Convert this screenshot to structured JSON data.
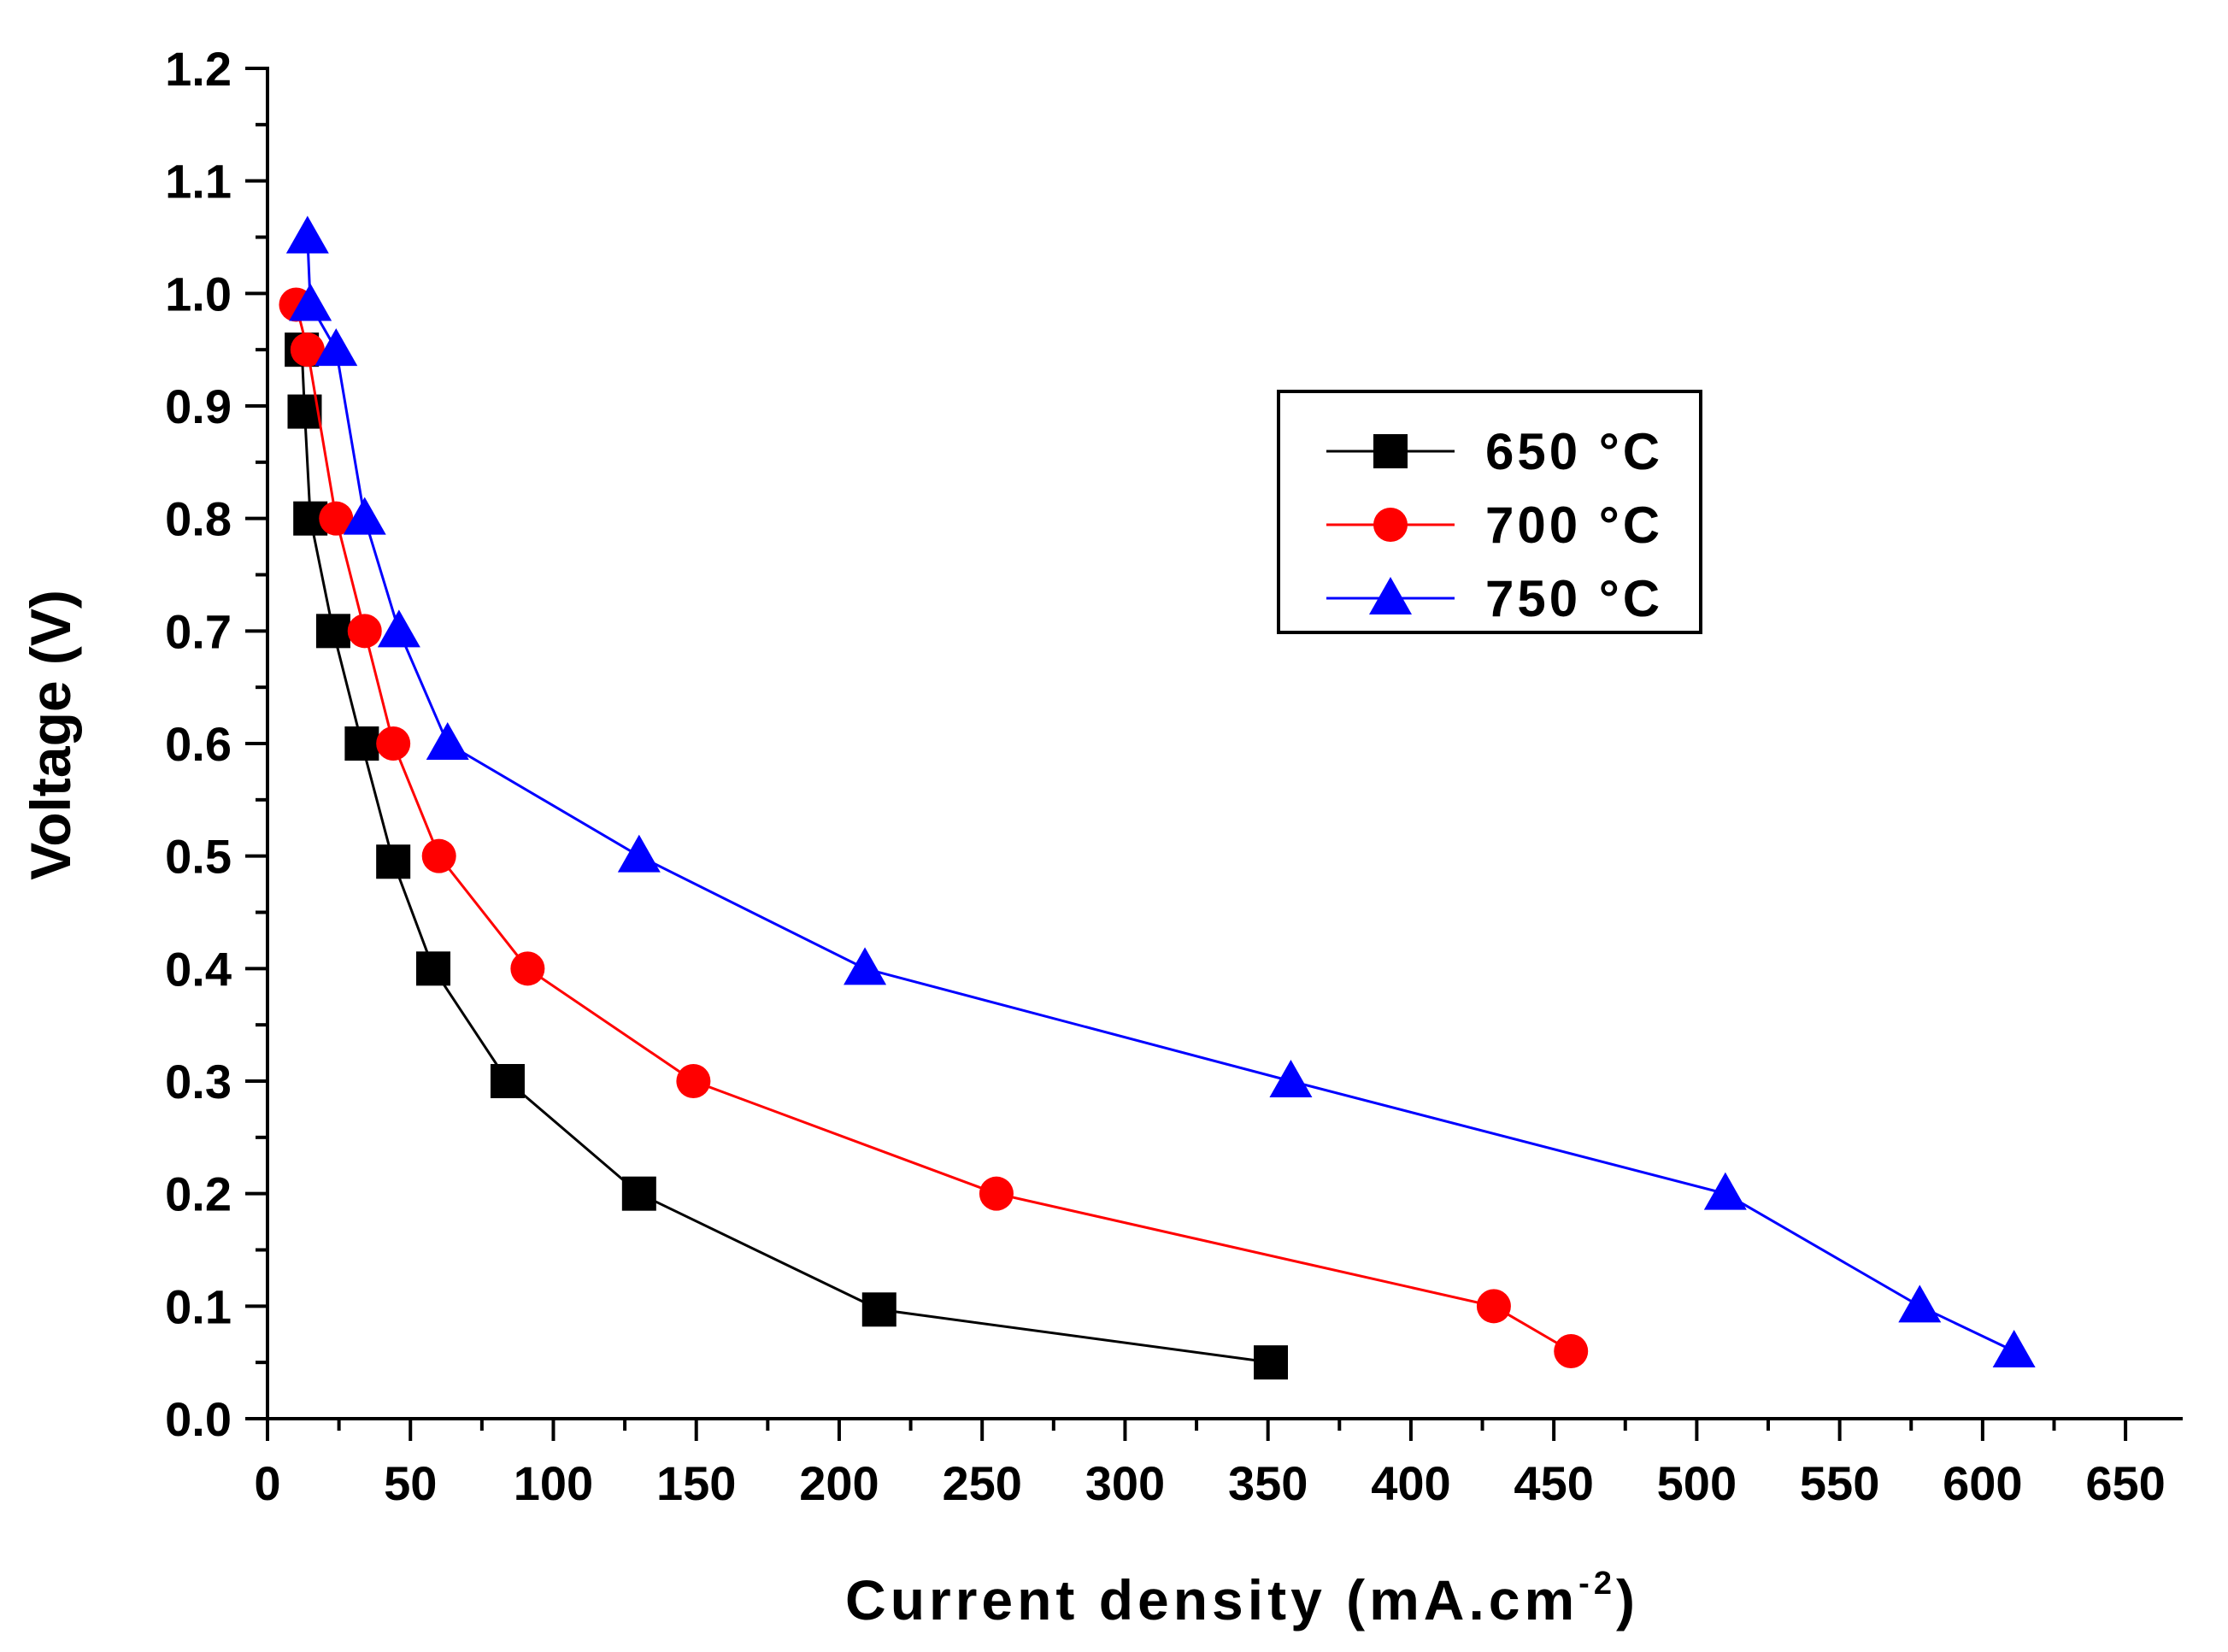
{
  "chart_data": {
    "type": "line",
    "xlabel": "Current density (mA.cm",
    "xlabel_superscript": "-2",
    "xlabel_suffix": ")",
    "ylabel": "Voltage (V)",
    "xlim": [
      0,
      670
    ],
    "ylim": [
      0,
      1.2
    ],
    "x_ticks": [
      0,
      50,
      100,
      150,
      200,
      250,
      300,
      350,
      400,
      450,
      500,
      550,
      600,
      650
    ],
    "y_ticks": [
      "0.0",
      "0.1",
      "0.2",
      "0.3",
      "0.4",
      "0.5",
      "0.6",
      "0.7",
      "0.8",
      "0.9",
      "1.0",
      "1.1",
      "1.2"
    ],
    "grid": false,
    "legend_position": "upper-right",
    "series": [
      {
        "name": "650 °C",
        "color": "#000000",
        "marker": "square",
        "x": [
          12,
          13,
          15,
          23,
          33,
          44,
          58,
          84,
          130,
          214,
          351
        ],
        "y": [
          0.95,
          0.895,
          0.8,
          0.7,
          0.6,
          0.495,
          0.4,
          0.3,
          0.2,
          0.097,
          0.05
        ]
      },
      {
        "name": "700 °C",
        "color": "#ff0000",
        "marker": "circle",
        "x": [
          10,
          14,
          24,
          34,
          44,
          60,
          91,
          149,
          255,
          429,
          456
        ],
        "y": [
          0.99,
          0.95,
          0.8,
          0.7,
          0.6,
          0.5,
          0.4,
          0.3,
          0.2,
          0.1,
          0.06
        ]
      },
      {
        "name": "750 °C",
        "color": "#0000ff",
        "marker": "triangle",
        "x": [
          14,
          15,
          24,
          34,
          46,
          63,
          130,
          209,
          358,
          510,
          578,
          611
        ],
        "y": [
          1.05,
          0.99,
          0.95,
          0.8,
          0.7,
          0.6,
          0.5,
          0.4,
          0.3,
          0.2,
          0.1,
          0.06
        ]
      }
    ]
  }
}
